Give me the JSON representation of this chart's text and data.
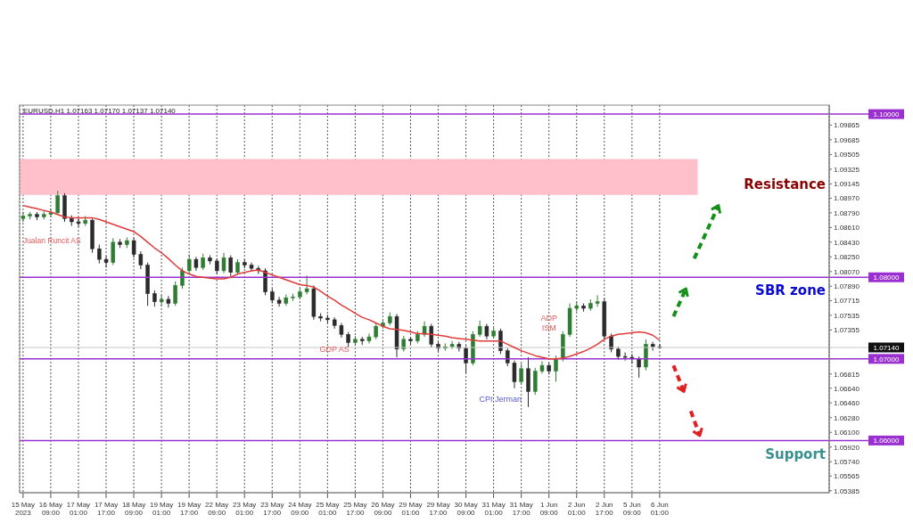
{
  "chart_data": {
    "type": "candlestick",
    "categories": [
      "15 May 2023",
      null,
      null,
      null,
      "16 May 09:00",
      null,
      null,
      null,
      "17 May 01:00",
      null,
      null,
      null,
      "17 May 17:00",
      null,
      null,
      null,
      "18 May 09:00",
      null,
      null,
      null,
      "19 May 01:00",
      null,
      null,
      null,
      "19 May 17:00",
      null,
      null,
      null,
      "22 May 09:00",
      null,
      null,
      null,
      "23 May 01:00",
      null,
      null,
      null,
      "23 May 17:00",
      null,
      null,
      null,
      "24 May 09:00",
      null,
      null,
      null,
      "25 May 01:00",
      null,
      null,
      null,
      "25 May 17:00",
      null,
      null,
      null,
      "26 May 09:00",
      null,
      null,
      null,
      "29 May 01:00",
      null,
      null,
      null,
      "29 May 17:00",
      null,
      null,
      null,
      "30 May 09:00",
      null,
      null,
      null,
      "31 May 01:00",
      null,
      null,
      null,
      "31 May 17:00",
      null,
      null,
      null,
      "1 Jun 09:00",
      null,
      null,
      null,
      "2 Jun 01:00",
      null,
      null,
      null,
      "2 Jun 17:00",
      null,
      null,
      null,
      "5 Jun 09:00",
      null,
      null,
      null,
      "6 Jun 01:00",
      null,
      null,
      null,
      null,
      null,
      null,
      null,
      null,
      null,
      null,
      null,
      null,
      null,
      null,
      null,
      null,
      null,
      null,
      null,
      null,
      null,
      null,
      null,
      null
    ],
    "ohlc": [
      [
        1.0872,
        1.088,
        1.0868,
        1.0875
      ],
      [
        1.0875,
        1.088,
        1.0871,
        1.0877
      ],
      [
        1.0877,
        1.088,
        1.087,
        1.0874
      ],
      [
        1.0874,
        1.0881,
        1.0871,
        1.0877
      ],
      [
        1.0877,
        1.0884,
        1.0874,
        1.0879
      ],
      [
        1.0879,
        1.0906,
        1.0877,
        1.09
      ],
      [
        1.09,
        1.0903,
        1.0868,
        1.0872
      ],
      [
        1.0872,
        1.0876,
        1.0863,
        1.0868
      ],
      [
        1.0868,
        1.0872,
        1.0862,
        1.0866
      ],
      [
        1.0866,
        1.0875,
        1.0863,
        1.087
      ],
      [
        1.087,
        1.0872,
        1.083,
        1.0835
      ],
      [
        1.0835,
        1.084,
        1.0817,
        1.0822
      ],
      [
        1.0822,
        1.0826,
        1.0812,
        1.0818
      ],
      [
        1.0818,
        1.0848,
        1.0815,
        1.0843
      ],
      [
        1.0843,
        1.0847,
        1.0836,
        1.084
      ],
      [
        1.084,
        1.0849,
        1.0836,
        1.0845
      ],
      [
        1.0845,
        1.0848,
        1.0824,
        1.0828
      ],
      [
        1.0828,
        1.0832,
        1.081,
        1.0815
      ],
      [
        1.0815,
        1.0818,
        1.0765,
        1.078
      ],
      [
        1.078,
        1.0784,
        1.0764,
        1.077
      ],
      [
        1.077,
        1.0778,
        1.0765,
        1.0773
      ],
      [
        1.0773,
        1.0777,
        1.0763,
        1.0768
      ],
      [
        1.0768,
        1.0795,
        1.0765,
        1.079
      ],
      [
        1.079,
        1.0812,
        1.0786,
        1.0808
      ],
      [
        1.0808,
        1.0828,
        1.0804,
        1.0822
      ],
      [
        1.0822,
        1.0825,
        1.0808,
        1.0812
      ],
      [
        1.0812,
        1.0829,
        1.0809,
        1.0824
      ],
      [
        1.0824,
        1.0827,
        1.0816,
        1.082
      ],
      [
        1.082,
        1.0823,
        1.0804,
        1.0808
      ],
      [
        1.0808,
        1.083,
        1.0805,
        1.0824
      ],
      [
        1.0824,
        1.0827,
        1.0801,
        1.0806
      ],
      [
        1.0806,
        1.0822,
        1.0803,
        1.0818
      ],
      [
        1.0818,
        1.0822,
        1.0811,
        1.0815
      ],
      [
        1.0815,
        1.0818,
        1.0807,
        1.0811
      ],
      [
        1.0811,
        1.0814,
        1.0804,
        1.0808
      ],
      [
        1.0808,
        1.0811,
        1.0778,
        1.0782
      ],
      [
        1.0782,
        1.0786,
        1.0768,
        1.0772
      ],
      [
        1.0772,
        1.0776,
        1.0764,
        1.0768
      ],
      [
        1.0768,
        1.0779,
        1.0765,
        1.0775
      ],
      [
        1.0775,
        1.078,
        1.0771,
        1.0776
      ],
      [
        1.0776,
        1.0786,
        1.0773,
        1.0782
      ],
      [
        1.0782,
        1.0802,
        1.0779,
        1.0786
      ],
      [
        1.0786,
        1.079,
        1.0748,
        1.0752
      ],
      [
        1.0752,
        1.0756,
        1.0746,
        1.075
      ],
      [
        1.075,
        1.0754,
        1.0744,
        1.0748
      ],
      [
        1.0748,
        1.0751,
        1.0737,
        1.0741
      ],
      [
        1.0741,
        1.0744,
        1.0726,
        1.073
      ],
      [
        1.073,
        1.0733,
        1.0715,
        1.072
      ],
      [
        1.072,
        1.0728,
        1.0716,
        1.0724
      ],
      [
        1.0724,
        1.0727,
        1.0717,
        1.0722
      ],
      [
        1.0722,
        1.0731,
        1.0719,
        1.0727
      ],
      [
        1.0727,
        1.0744,
        1.0724,
        1.074
      ],
      [
        1.074,
        1.0747,
        1.0737,
        1.0744
      ],
      [
        1.0744,
        1.0757,
        1.0741,
        1.0752
      ],
      [
        1.0752,
        1.0755,
        1.0702,
        1.0712
      ],
      [
        1.0712,
        1.0728,
        1.0709,
        1.0724
      ],
      [
        1.0724,
        1.0727,
        1.0718,
        1.0722
      ],
      [
        1.0722,
        1.0734,
        1.0719,
        1.073
      ],
      [
        1.073,
        1.0746,
        1.0727,
        1.074
      ],
      [
        1.074,
        1.0743,
        1.0714,
        1.0718
      ],
      [
        1.0718,
        1.0721,
        1.0709,
        1.0713
      ],
      [
        1.0713,
        1.0719,
        1.071,
        1.0715
      ],
      [
        1.0715,
        1.0722,
        1.0712,
        1.0718
      ],
      [
        1.0718,
        1.0721,
        1.0709,
        1.0713
      ],
      [
        1.0713,
        1.0716,
        1.0683,
        1.0695
      ],
      [
        1.0695,
        1.0734,
        1.0692,
        1.073
      ],
      [
        1.073,
        1.0747,
        1.0727,
        1.074
      ],
      [
        1.074,
        1.0743,
        1.0724,
        1.0728
      ],
      [
        1.0728,
        1.0738,
        1.0725,
        1.0734
      ],
      [
        1.0734,
        1.0737,
        1.0706,
        1.071
      ],
      [
        1.071,
        1.0713,
        1.0691,
        1.0695
      ],
      [
        1.0695,
        1.0698,
        1.0664,
        1.0672
      ],
      [
        1.0672,
        1.0694,
        1.0669,
        1.0688
      ],
      [
        1.0688,
        1.0702,
        1.0641,
        1.066
      ],
      [
        1.066,
        1.0689,
        1.0656,
        1.0685
      ],
      [
        1.0685,
        1.0697,
        1.0682,
        1.0692
      ],
      [
        1.0692,
        1.0695,
        1.0681,
        1.0685
      ],
      [
        1.0685,
        1.0704,
        1.0672,
        1.07
      ],
      [
        1.07,
        1.0734,
        1.0697,
        1.073
      ],
      [
        1.073,
        1.0768,
        1.0727,
        1.0762
      ],
      [
        1.0762,
        1.077,
        1.0758,
        1.0765
      ],
      [
        1.0765,
        1.0768,
        1.0758,
        1.0762
      ],
      [
        1.0762,
        1.0773,
        1.0759,
        1.0768
      ],
      [
        1.0768,
        1.0778,
        1.0764,
        1.077
      ],
      [
        1.077,
        1.0774,
        1.0724,
        1.0728
      ],
      [
        1.0728,
        1.0731,
        1.0708,
        1.0712
      ],
      [
        1.0712,
        1.0715,
        1.0699,
        1.0703
      ],
      [
        1.0703,
        1.0708,
        1.0698,
        1.0702
      ],
      [
        1.0702,
        1.0706,
        1.0694,
        1.07
      ],
      [
        1.07,
        1.0703,
        1.0677,
        1.069
      ],
      [
        1.069,
        1.0724,
        1.0686,
        1.0718
      ],
      [
        1.0718,
        1.0721,
        1.071,
        1.0715
      ],
      [
        1.0715,
        1.0718,
        1.0713,
        1.0714
      ],
      null,
      null,
      null,
      null,
      null,
      null,
      null,
      null,
      null,
      null,
      null,
      null,
      null,
      null,
      null,
      null,
      null,
      null,
      null,
      null,
      null,
      null,
      null,
      null
    ],
    "colors": [
      "#2e7d32",
      "#2e7d32",
      "#2b2b2b",
      "#2e7d32",
      "#2e7d32",
      "#2e7d32",
      "#2b2b2b",
      "#2b2b2b",
      "#2b2b2b",
      "#2e7d32",
      "#2b2b2b",
      "#2b2b2b",
      "#2b2b2b",
      "#2e7d32",
      "#2b2b2b",
      "#2e7d32",
      "#2b2b2b",
      "#2b2b2b",
      "#2b2b2b",
      "#2b2b2b",
      "#2e7d32",
      "#2b2b2b",
      "#2e7d32",
      "#2e7d32",
      "#2e7d32",
      "#2b2b2b",
      "#2e7d32",
      "#2b2b2b",
      "#2b2b2b",
      "#2e7d32",
      "#2b2b2b",
      "#2e7d32",
      "#2b2b2b",
      "#2b2b2b",
      "#2b2b2b",
      "#2b2b2b",
      "#2b2b2b",
      "#2b2b2b",
      "#2e7d32",
      "#2e7d32",
      "#2e7d32",
      "#2e7d32",
      "#2b2b2b",
      "#2b2b2b",
      "#2b2b2b",
      "#2b2b2b",
      "#2b2b2b",
      "#2b2b2b",
      "#2e7d32",
      "#2b2b2b",
      "#2e7d32",
      "#2e7d32",
      "#2e7d32",
      "#2e7d32",
      "#2b2b2b",
      "#2e7d32",
      "#2b2b2b",
      "#2e7d32",
      "#2e7d32",
      "#2b2b2b",
      "#2b2b2b",
      "#2e7d32",
      "#2e7d32",
      "#2b2b2b",
      "#2b2b2b",
      "#2e7d32",
      "#2e7d32",
      "#2b2b2b",
      "#2e7d32",
      "#2b2b2b",
      "#2b2b2b",
      "#2b2b2b",
      "#2e7d32",
      "#2b2b2b",
      "#2e7d32",
      "#2e7d32",
      "#2b2b2b",
      "#2e7d32",
      "#2e7d32",
      "#2e7d32",
      "#2e7d32",
      "#2b2b2b",
      "#2e7d32",
      "#2e7d32",
      "#2b2b2b",
      "#2b2b2b",
      "#2b2b2b",
      "#2b2b2b",
      "#2b2b2b",
      "#2b2b2b",
      "#2e7d32",
      "#2b2b2b",
      "#2b2b2b",
      null,
      null,
      null,
      null,
      null,
      null,
      null,
      null,
      null,
      null,
      null,
      null,
      null,
      null,
      null,
      null,
      null,
      null,
      null,
      null,
      null,
      null,
      null,
      null
    ],
    "series": [
      {
        "type": "line",
        "color": "#e03a3a",
        "values": [
          1.0888,
          1.0886,
          1.0884,
          1.0882,
          1.088,
          1.0877,
          1.0874,
          1.0873,
          1.0873,
          1.0873,
          1.0873,
          1.0871,
          1.0868,
          1.0865,
          1.0862,
          1.0859,
          1.0856,
          1.085,
          1.0843,
          1.0836,
          1.083,
          1.0823,
          1.0815,
          1.0808,
          1.0804,
          1.0801,
          1.08,
          1.0799,
          1.0798,
          1.0798,
          1.08,
          1.0804,
          1.0806,
          1.0808,
          1.0809,
          1.0806,
          1.0803,
          1.08,
          1.0797,
          1.0794,
          1.0791,
          1.079,
          1.0788,
          1.0783,
          1.0777,
          1.0772,
          1.0766,
          1.0761,
          1.0756,
          1.0751,
          1.0748,
          1.0744,
          1.074,
          1.0737,
          1.0736,
          1.0735,
          1.0733,
          1.0731,
          1.0731,
          1.073,
          1.0729,
          1.0728,
          1.0726,
          1.0725,
          1.0724,
          1.0723,
          1.0722,
          1.0722,
          1.0722,
          1.0722,
          1.0718,
          1.0714,
          1.071,
          1.0707,
          1.0704,
          1.0702,
          1.07,
          1.07,
          1.0701,
          1.0703,
          1.0706,
          1.0709,
          1.0713,
          1.0718,
          1.0724,
          1.0728,
          1.073,
          1.0731,
          1.0732,
          1.0733,
          1.0732,
          1.0729,
          1.0723,
          null,
          null,
          null,
          null,
          null,
          null,
          null,
          null,
          null,
          null,
          null,
          null,
          null,
          null,
          null,
          null,
          null,
          null,
          null,
          null,
          null,
          null,
          null,
          null
        ]
      }
    ],
    "ylim": [
      1.0536,
      1.1011
    ],
    "yticks": [
      {
        "value": 1.09865,
        "label": "1.09865"
      },
      {
        "value": 1.09685,
        "label": "1.09685"
      },
      {
        "value": 1.09505,
        "label": "1.09505"
      },
      {
        "value": 1.09325,
        "label": "1.09325"
      },
      {
        "value": 1.09145,
        "label": "1.09145"
      },
      {
        "value": 1.0897,
        "label": "1.08970"
      },
      {
        "value": 1.0879,
        "label": "1.08790"
      },
      {
        "value": 1.0861,
        "label": "1.08610"
      },
      {
        "value": 1.0843,
        "label": "1.08430"
      },
      {
        "value": 1.0825,
        "label": "1.08250"
      },
      {
        "value": 1.0807,
        "label": "1.08070"
      },
      {
        "value": 1.0789,
        "label": "1.07890"
      },
      {
        "value": 1.07715,
        "label": "1.07715"
      },
      {
        "value": 1.07535,
        "label": "1.07535"
      },
      {
        "value": 1.07355,
        "label": "1.07355"
      },
      {
        "value": 1.06815,
        "label": "1.06815"
      },
      {
        "value": 1.0664,
        "label": "1.06640"
      },
      {
        "value": 1.0646,
        "label": "1.06460"
      },
      {
        "value": 1.0628,
        "label": "1.06280"
      },
      {
        "value": 1.061,
        "label": "1.06100"
      },
      {
        "value": 1.0592,
        "label": "1.05920"
      },
      {
        "value": 1.0574,
        "label": "1.05740"
      },
      {
        "value": 1.05565,
        "label": "1.05565"
      },
      {
        "value": 1.05385,
        "label": "1.05385"
      }
    ],
    "grid": "x",
    "ref_lines": [
      {
        "axis": "y",
        "value": 1.1,
        "label": "1.10000",
        "color": "#9b30d0"
      },
      {
        "axis": "y",
        "value": 1.08,
        "label": "1.08000",
        "color": "#9b30d0"
      },
      {
        "axis": "y",
        "value": 1.07,
        "label": "1.07000",
        "color": "#9b30d0"
      },
      {
        "axis": "y",
        "value": 1.06,
        "label": "1.06000",
        "color": "#9b30d0"
      },
      {
        "axis": "y",
        "value": 1.0714,
        "label": "1.07140",
        "color": "#c8c8c8"
      }
    ],
    "bands": [
      {
        "axis": "y",
        "from": 1.0901,
        "to": 1.0945,
        "color": "#ffc0cb"
      }
    ],
    "annotations": [
      "EURUSD,H1  1.07163 1.07170 1.07137 1.07140",
      "Resistance",
      "SBR zone",
      "Support",
      "Jualan Runcit AS",
      "GDP AS",
      "CPI Jerman",
      "ADP\nISM"
    ]
  }
}
